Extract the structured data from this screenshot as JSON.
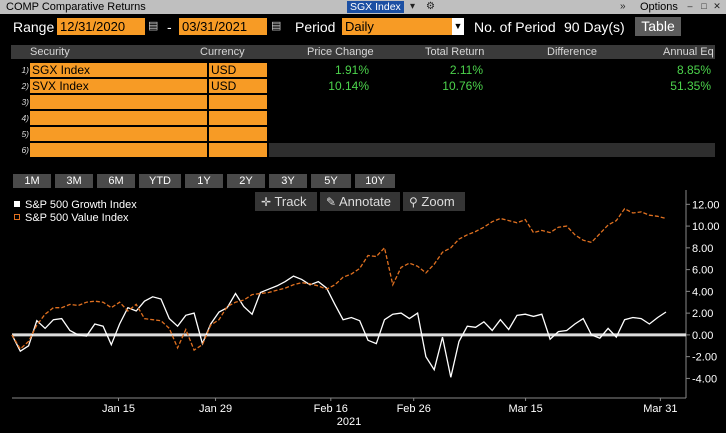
{
  "window": {
    "title": "COMP Comparative Returns",
    "ticker_tab": "SGX Index",
    "options_label": "Options"
  },
  "toolbar": {
    "range_label": "Range",
    "start_date": "12/31/2020",
    "dash": "-",
    "end_date": "03/31/2021",
    "period_label": "Period",
    "period_value": "Daily",
    "num_periods_label": "No. of Period",
    "num_periods_value": "90 Day(s)",
    "table_button": "Table"
  },
  "table": {
    "headers": [
      "Security",
      "Currency",
      "Price Change",
      "Total Return",
      "Difference",
      "Annual Eq"
    ],
    "rows": [
      {
        "n": "1)",
        "security": "SGX Index",
        "currency": "USD",
        "price_change": "1.91%",
        "total_return": "2.11%",
        "difference": "",
        "annual_eq": "8.85%"
      },
      {
        "n": "2)",
        "security": "SVX Index",
        "currency": "USD",
        "price_change": "10.14%",
        "total_return": "10.76%",
        "difference": "",
        "annual_eq": "51.35%"
      },
      {
        "n": "3)",
        "security": "",
        "currency": "",
        "price_change": "",
        "total_return": "",
        "difference": "",
        "annual_eq": ""
      },
      {
        "n": "4)",
        "security": "",
        "currency": "",
        "price_change": "",
        "total_return": "",
        "difference": "",
        "annual_eq": ""
      },
      {
        "n": "5)",
        "security": "",
        "currency": "",
        "price_change": "",
        "total_return": "",
        "difference": "",
        "annual_eq": ""
      },
      {
        "n": "6)",
        "security": "",
        "currency": "",
        "price_change": "",
        "total_return": "",
        "difference": "",
        "annual_eq": ""
      }
    ]
  },
  "periods": [
    "1M",
    "3M",
    "6M",
    "YTD",
    "1Y",
    "2Y",
    "3Y",
    "5Y",
    "10Y"
  ],
  "chart_tools": {
    "track": "Track",
    "annotate": "Annotate",
    "zoom": "Zoom"
  },
  "colors": {
    "orange_field": "#f79b25",
    "positive_value": "#4cd34c",
    "growth_series": "#ffffff",
    "value_series": "#e07020",
    "background": "#000000"
  },
  "chart_data": {
    "type": "line",
    "legend": [
      "S&P 500 Growth Index",
      "S&P 500 Value Index"
    ],
    "legend_position": "top-left",
    "xlabel": "2021",
    "x_ticks": [
      "Jan 15",
      "Jan 29",
      "Feb 16",
      "Feb 26",
      "Mar 15",
      "Mar 31"
    ],
    "y_ticks": [
      "12.00",
      "10.00",
      "8.00",
      "6.00",
      "4.00",
      "2.00",
      "0.00",
      "-2.00",
      "-4.00"
    ],
    "ylim": [
      -5.8,
      13.5
    ],
    "zero_line": true,
    "series": [
      {
        "name": "S&P 500 Growth Index",
        "values": [
          0.0,
          -1.5,
          -1.0,
          1.3,
          0.6,
          1.4,
          1.5,
          0.4,
          0.0,
          -0.1,
          1.0,
          0.8,
          -0.9,
          1.0,
          2.5,
          2.2,
          3.1,
          3.5,
          3.3,
          1.5,
          0.8,
          1.8,
          2.0,
          -0.8,
          1.0,
          2.1,
          2.5,
          3.8,
          2.6,
          1.9,
          3.9,
          4.2,
          4.5,
          4.9,
          5.4,
          5.1,
          4.6,
          4.9,
          4.3,
          2.8,
          1.4,
          1.6,
          1.3,
          -0.5,
          -0.8,
          1.4,
          1.9,
          2.0,
          1.5,
          2.0,
          -2.0,
          -3.2,
          -0.2,
          -3.9,
          -0.6,
          0.8,
          0.7,
          1.2,
          0.4,
          1.4,
          0.5,
          1.8,
          1.9,
          1.7,
          1.9,
          -0.4,
          0.3,
          0.4,
          1.0,
          1.5,
          0.0,
          -0.3,
          0.6,
          -0.2,
          1.4,
          1.6,
          1.5,
          1.0,
          1.6,
          2.1
        ]
      },
      {
        "name": "S&P 500 Value Index",
        "values": [
          0.0,
          -1.3,
          -0.6,
          0.9,
          1.9,
          2.5,
          2.5,
          2.8,
          2.7,
          3.0,
          3.1,
          3.0,
          2.5,
          3.0,
          2.2,
          2.8,
          1.5,
          1.4,
          1.3,
          0.6,
          -1.2,
          0.5,
          -1.4,
          -0.9,
          0.9,
          1.4,
          2.6,
          3.0,
          3.2,
          3.7,
          3.8,
          3.9,
          4.1,
          4.3,
          4.6,
          4.8,
          4.7,
          4.5,
          4.2,
          4.6,
          5.3,
          5.6,
          6.1,
          7.3,
          7.2,
          8.0,
          4.6,
          6.2,
          6.6,
          6.3,
          5.7,
          6.5,
          7.6,
          8.0,
          8.8,
          9.2,
          9.5,
          9.9,
          10.4,
          10.7,
          10.5,
          10.3,
          10.6,
          9.4,
          9.6,
          9.4,
          9.9,
          10.0,
          9.2,
          8.7,
          8.5,
          9.3,
          10.1,
          10.5,
          11.6,
          11.2,
          11.3,
          11.0,
          10.9,
          10.7
        ]
      }
    ]
  }
}
